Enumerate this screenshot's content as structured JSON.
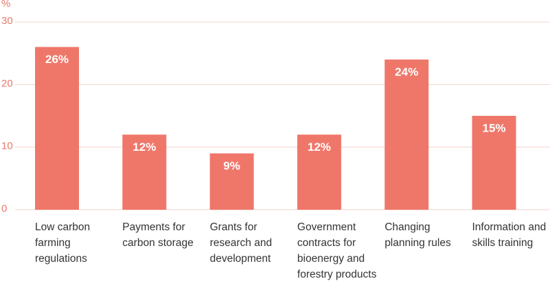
{
  "chart_data": {
    "type": "bar",
    "y_unit": "%",
    "categories": [
      "Low carbon farming regulations",
      "Payments for carbon storage",
      "Grants for research and development",
      "Government contracts for bioenergy and forestry products",
      "Changing planning rules",
      "Information and skills training"
    ],
    "values": [
      26,
      12,
      9,
      12,
      24,
      15
    ],
    "value_labels": [
      "26%",
      "12%",
      "9%",
      "12%",
      "24%",
      "15%"
    ],
    "color": "#ef776a",
    "ylim": [
      0,
      30
    ],
    "yticks": [
      0,
      10,
      20,
      30
    ],
    "grid": true
  }
}
